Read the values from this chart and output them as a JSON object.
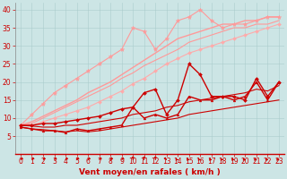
{
  "bg": "#cce5e5",
  "grid_color": "#aacccc",
  "xlabel": "Vent moyen/en rafales ( km/h )",
  "xlabel_color": "#cc0000",
  "xlabel_fontsize": 6.5,
  "tick_color": "#cc0000",
  "tick_fontsize": 5.5,
  "xlim": [
    -0.5,
    23.5
  ],
  "ylim": [
    0,
    42
  ],
  "yticks": [
    5,
    10,
    15,
    20,
    25,
    30,
    35,
    40
  ],
  "xticks": [
    0,
    1,
    2,
    3,
    4,
    5,
    6,
    7,
    8,
    9,
    10,
    11,
    12,
    13,
    14,
    15,
    16,
    17,
    18,
    19,
    20,
    21,
    22,
    23
  ],
  "line1_x": [
    0,
    1,
    2,
    3,
    4,
    5,
    6,
    7,
    8,
    9,
    10,
    11,
    12,
    13,
    14,
    15,
    16,
    17,
    18,
    19,
    20,
    21,
    22,
    23
  ],
  "line1_y": [
    8,
    11,
    14,
    17,
    19,
    21,
    23,
    25,
    27,
    29,
    35,
    34,
    29,
    32,
    37,
    38,
    40,
    37,
    35,
    36,
    36,
    37,
    38,
    38
  ],
  "line1_color": "#ff9999",
  "line1_marker": "*",
  "line1_ms": 3.5,
  "line1_lw": 0.8,
  "line2_x": [
    0,
    1,
    2,
    3,
    4,
    5,
    6,
    7,
    8,
    9,
    10,
    11,
    12,
    13,
    14,
    15,
    16,
    17,
    18,
    19,
    20,
    21,
    22,
    23
  ],
  "line2_y": [
    8,
    9,
    10.5,
    12,
    13.5,
    15,
    17,
    18.5,
    20,
    22,
    24,
    26,
    28,
    30,
    32,
    33,
    34,
    35,
    36,
    36,
    37,
    37,
    38,
    38
  ],
  "line2_color": "#ff9999",
  "line2_lw": 1.0,
  "line3_x": [
    0,
    1,
    2,
    3,
    4,
    5,
    6,
    7,
    8,
    9,
    10,
    11,
    12,
    13,
    14,
    15,
    16,
    17,
    18,
    19,
    20,
    21,
    22,
    23
  ],
  "line3_y": [
    8,
    8.5,
    10,
    11.5,
    13,
    14.5,
    16,
    17.5,
    19,
    21,
    22.5,
    24.5,
    26,
    27.5,
    29,
    31,
    32,
    33,
    34,
    35,
    35,
    36,
    36,
    37
  ],
  "line3_color": "#ff9999",
  "line3_lw": 0.8,
  "line4_x": [
    0,
    1,
    2,
    3,
    4,
    5,
    6,
    7,
    8,
    9,
    10,
    11,
    12,
    13,
    14,
    15,
    16,
    17,
    18,
    19,
    20,
    21,
    22,
    23
  ],
  "line4_y": [
    8,
    8,
    9,
    10,
    11,
    12,
    13,
    14.5,
    16,
    17.5,
    19.5,
    21,
    23,
    25,
    26.5,
    28,
    29,
    30,
    31,
    32,
    33,
    34,
    35,
    36
  ],
  "line4_color": "#ffaaaa",
  "line4_lw": 0.8,
  "line4_marker": "D",
  "line4_ms": 2.0,
  "line5_x": [
    0,
    1,
    2,
    3,
    4,
    5,
    6,
    7,
    8,
    9,
    10,
    11,
    12,
    13,
    14,
    15,
    16,
    17,
    18,
    19,
    20,
    21,
    22,
    23
  ],
  "line5_y": [
    8,
    8,
    8.5,
    8.5,
    9,
    9.5,
    10,
    10.5,
    11.5,
    12.5,
    13,
    17,
    18,
    11,
    15,
    25,
    22,
    16,
    16,
    16,
    15,
    21,
    16,
    20
  ],
  "line5_color": "#cc0000",
  "line5_lw": 1.0,
  "line5_marker": "D",
  "line5_ms": 2.0,
  "line6_x": [
    0,
    1,
    2,
    3,
    4,
    5,
    6,
    7,
    8,
    9,
    10,
    11,
    12,
    13,
    14,
    15,
    16,
    17,
    18,
    19,
    20,
    21,
    22,
    23
  ],
  "line6_y": [
    8,
    7.8,
    7.5,
    7.5,
    8,
    8,
    8.5,
    9,
    9.5,
    10,
    11,
    11.5,
    12,
    13,
    13.5,
    14.5,
    15,
    15.5,
    16,
    16.5,
    17,
    18,
    17.5,
    19
  ],
  "line6_color": "#cc0000",
  "line6_lw": 0.8,
  "line7_x": [
    0,
    1,
    2,
    3,
    4,
    5,
    6,
    7,
    8,
    9,
    10,
    11,
    12,
    13,
    14,
    15,
    16,
    17,
    18,
    19,
    20,
    21,
    22,
    23
  ],
  "line7_y": [
    7.5,
    7,
    6.5,
    6.5,
    6,
    7,
    6.5,
    7,
    7.5,
    8,
    13,
    10,
    11,
    10,
    11,
    16,
    15,
    15,
    16,
    15,
    16,
    20,
    15,
    20
  ],
  "line7_color": "#cc0000",
  "line7_lw": 1.0,
  "line7_marker": "^",
  "line7_ms": 2.0,
  "line8_x": [
    0,
    1,
    2,
    3,
    4,
    5,
    6,
    7,
    8,
    9,
    10,
    11,
    12,
    13,
    14,
    15,
    16,
    17,
    18,
    19,
    20,
    21,
    22,
    23
  ],
  "line8_y": [
    7.5,
    7,
    6.8,
    6.5,
    6.2,
    6.5,
    6.2,
    6.5,
    7,
    7.5,
    8,
    8.5,
    9,
    9.5,
    10,
    11,
    11.5,
    12,
    12.5,
    13,
    13.5,
    14,
    14.5,
    15
  ],
  "line8_color": "#cc0000",
  "line8_lw": 0.8,
  "wind_directions": [
    225,
    225,
    225,
    225,
    225,
    225,
    225,
    225,
    225,
    225,
    270,
    270,
    270,
    315,
    0,
    0,
    0,
    0,
    0,
    0,
    0,
    0,
    0,
    0
  ]
}
